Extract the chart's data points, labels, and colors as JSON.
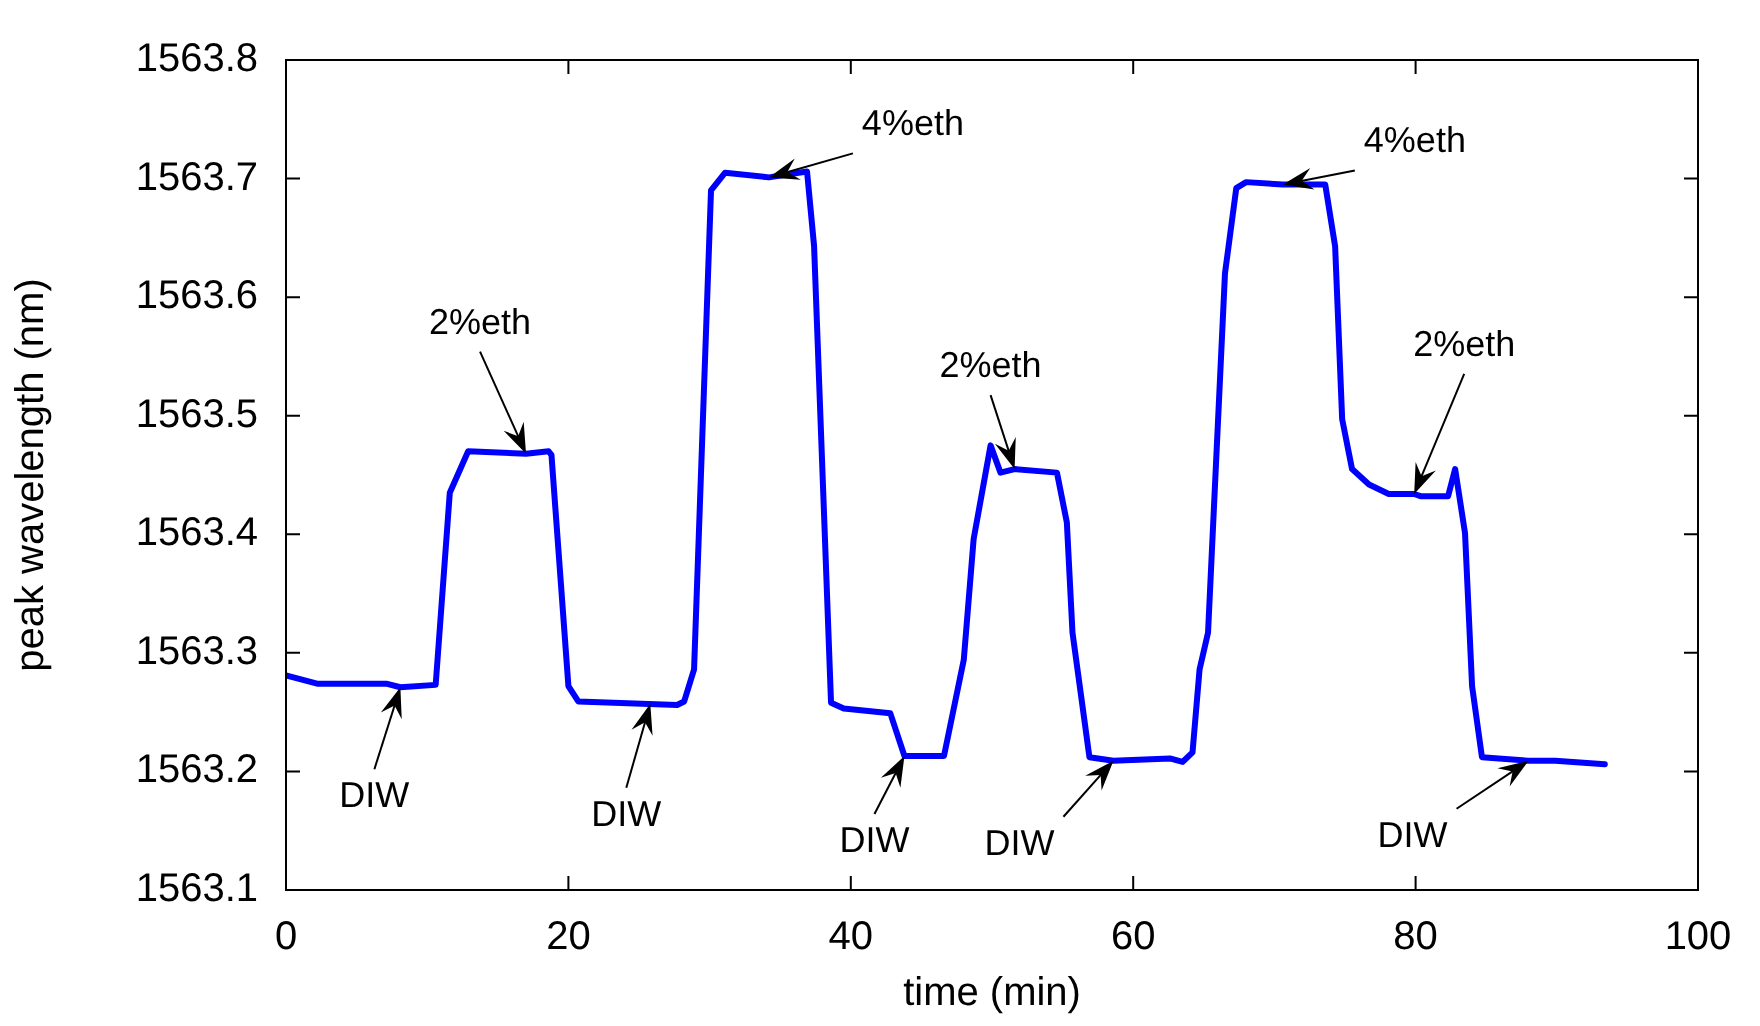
{
  "chart_data": {
    "type": "line",
    "xlabel": "time (min)",
    "ylabel": "peak wavelength (nm)",
    "xlim": [
      0,
      100
    ],
    "xticks": [
      0,
      20,
      40,
      60,
      80,
      100
    ],
    "ylim": [
      1563.1,
      1563.8
    ],
    "yticks": [
      {
        "value": 1563.1,
        "label": "1563.1"
      },
      {
        "value": 1563.2,
        "label": "1563.2"
      },
      {
        "value": 1563.3,
        "label": "1563.3"
      },
      {
        "value": 1563.4,
        "label": "1563.4"
      },
      {
        "value": 1563.5,
        "label": "1563.5"
      },
      {
        "value": 1563.6,
        "label": "1563.6"
      },
      {
        "value": 1563.7,
        "label": "1563.7"
      },
      {
        "value": 1563.8,
        "label": "1563.8"
      }
    ],
    "grid": false,
    "legend": false,
    "marker": "none",
    "line_style": "solid",
    "series": [
      {
        "color": "#0000ff",
        "x": [
          0,
          1.6,
          2.2,
          7.1,
          8.1,
          10.6,
          11.6,
          12.9,
          17,
          18.6,
          18.8,
          20,
          20.7,
          27.7,
          28.2,
          28.9,
          30.1,
          31.1,
          34.2,
          36.9,
          37.4,
          38.6,
          39.5,
          42.8,
          43.8,
          46.6,
          48,
          48.7,
          49.9,
          50.6,
          51.6,
          54.6,
          55.3,
          55.7,
          56.9,
          58.6,
          62.6,
          63.5,
          64.2,
          64.7,
          65.3,
          66.5,
          67.3,
          68,
          70.6,
          73.6,
          74.3,
          74.8,
          75.5,
          76.7,
          78.1,
          79.9,
          80.4,
          82.3,
          82.8,
          83.5,
          84,
          84.7,
          88,
          89.9,
          93.4
        ],
        "values": [
          1563.281,
          1563.276,
          1563.274,
          1563.274,
          1563.271,
          1563.273,
          1563.435,
          1563.47,
          1563.468,
          1563.47,
          1563.467,
          1563.272,
          1563.259,
          1563.256,
          1563.259,
          1563.286,
          1563.69,
          1563.705,
          1563.701,
          1563.706,
          1563.643,
          1563.258,
          1563.253,
          1563.249,
          1563.213,
          1563.213,
          1563.294,
          1563.396,
          1563.475,
          1563.452,
          1563.455,
          1563.452,
          1563.41,
          1563.317,
          1563.212,
          1563.209,
          1563.211,
          1563.208,
          1563.216,
          1563.286,
          1563.317,
          1563.62,
          1563.692,
          1563.697,
          1563.695,
          1563.695,
          1563.643,
          1563.497,
          1563.455,
          1563.442,
          1563.434,
          1563.434,
          1563.432,
          1563.432,
          1563.455,
          1563.401,
          1563.272,
          1563.212,
          1563.209,
          1563.209,
          1563.206
        ]
      }
    ],
    "annotations": [
      {
        "text": "DIW",
        "x": 8.1,
        "y": 1563.271
      },
      {
        "text": "2%eth",
        "x": 17,
        "y": 1563.468
      },
      {
        "text": "DIW",
        "x": 25.8,
        "y": 1563.257
      },
      {
        "text": "4%eth",
        "x": 34.2,
        "y": 1563.701
      },
      {
        "text": "DIW",
        "x": 43.8,
        "y": 1563.213
      },
      {
        "text": "2%eth",
        "x": 51.6,
        "y": 1563.455
      },
      {
        "text": "DIW",
        "x": 58.6,
        "y": 1563.209
      },
      {
        "text": "4%eth",
        "x": 70.6,
        "y": 1563.695
      },
      {
        "text": "2%eth",
        "x": 79.9,
        "y": 1563.434
      },
      {
        "text": "DIW",
        "x": 88,
        "y": 1563.209
      }
    ]
  }
}
